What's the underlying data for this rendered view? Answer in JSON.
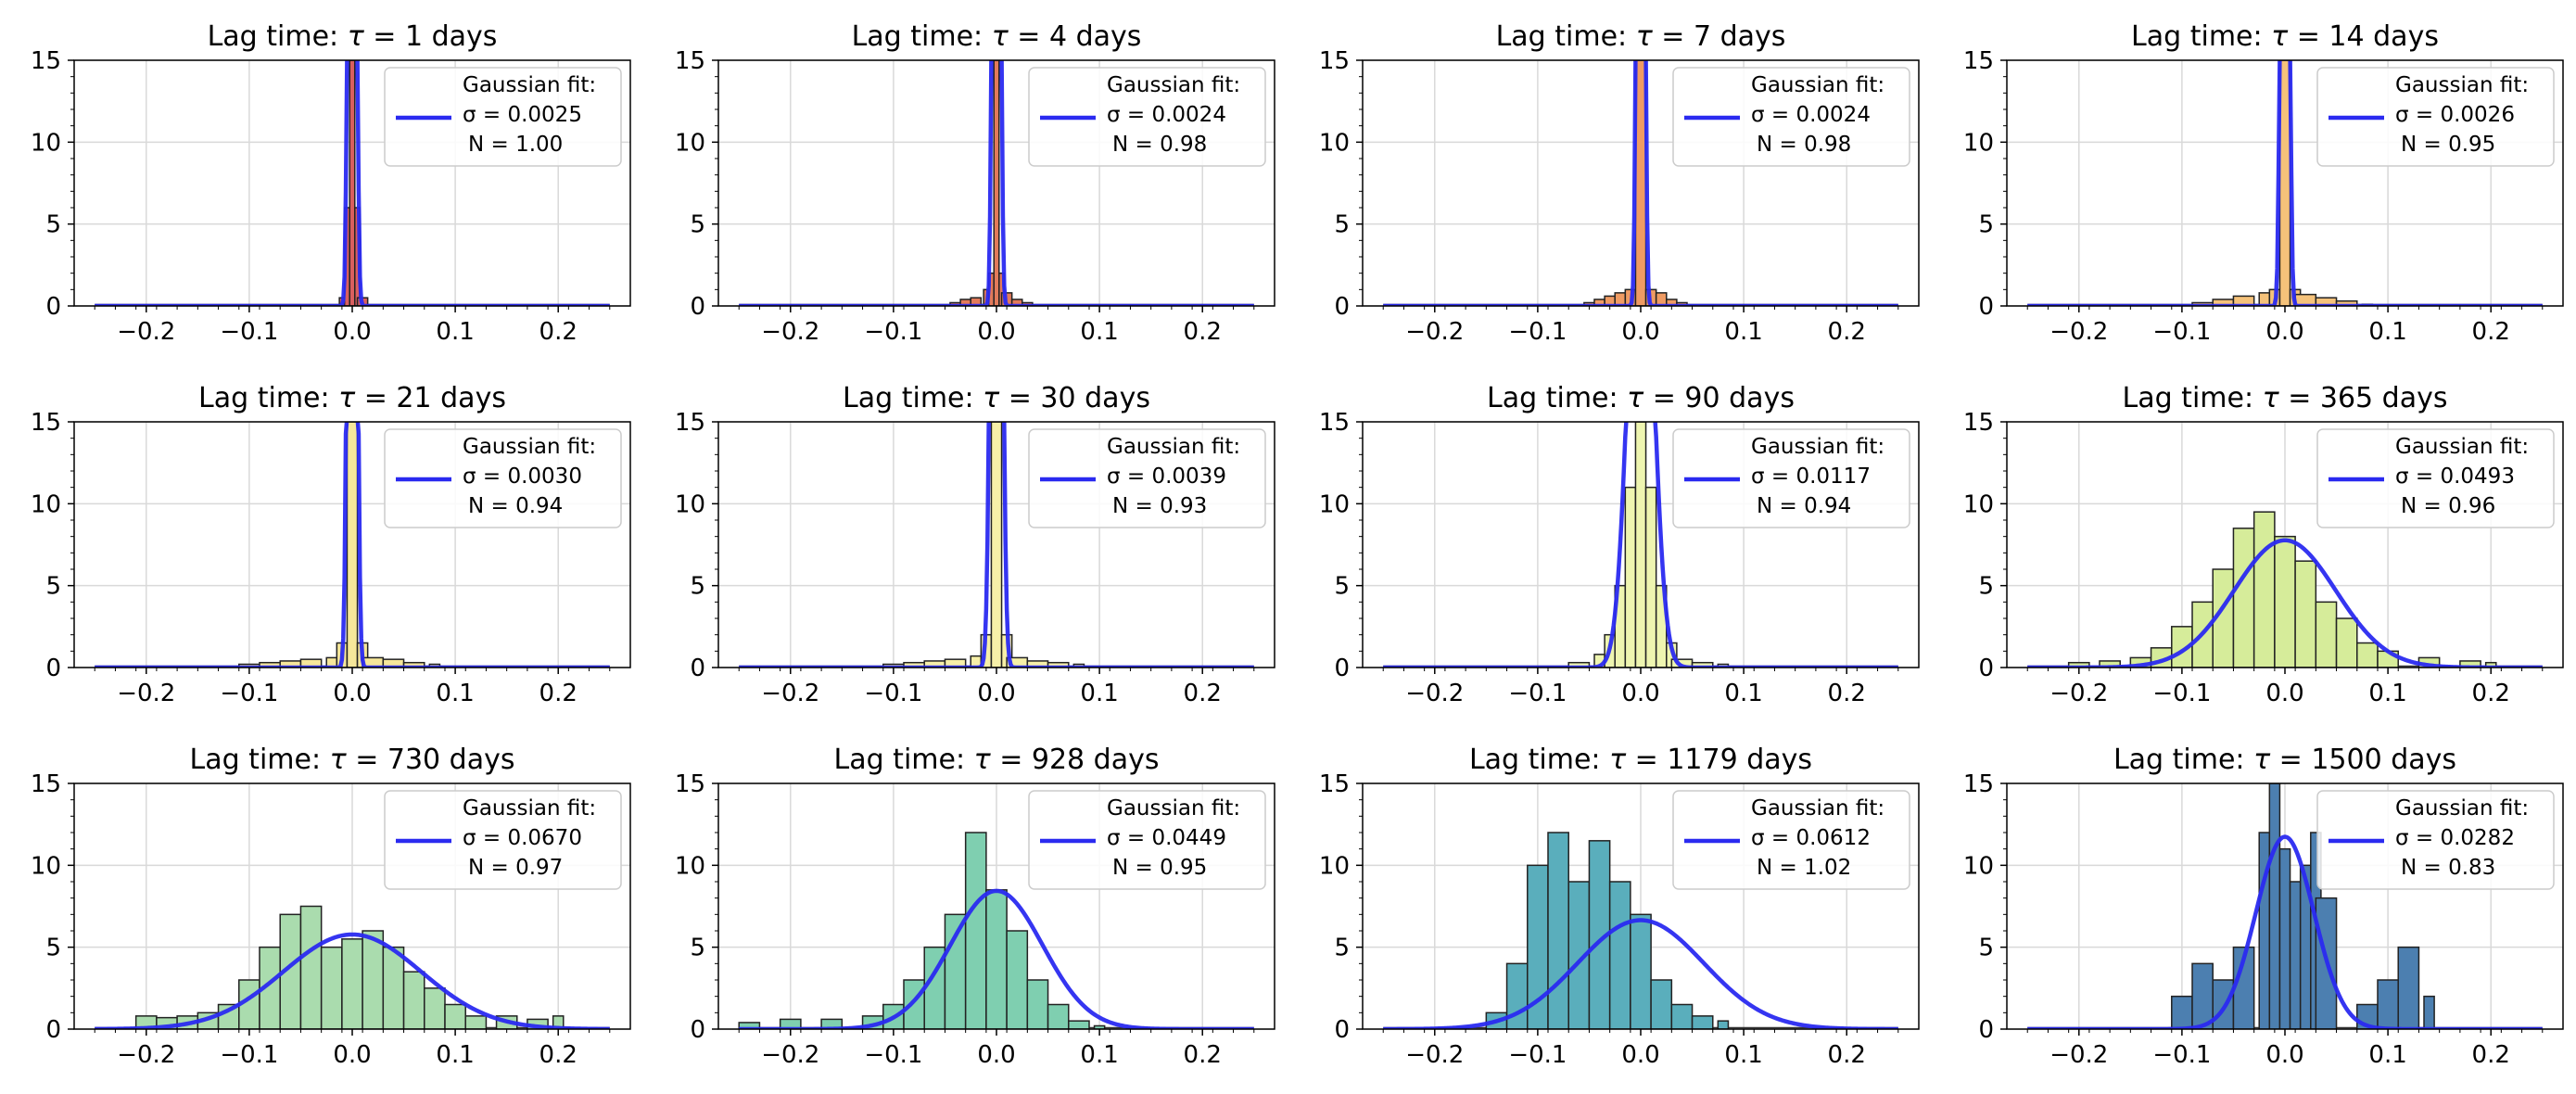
{
  "figure": {
    "title_prefix": "Lag time: ",
    "legend_heading": "Gaussian fit:"
  },
  "chart_data": [
    {
      "type": "bar",
      "title": "Lag time: τ = 1 days",
      "tau": "τ = 1",
      "days": "days",
      "xlim": [
        -0.27,
        0.27
      ],
      "ylim": [
        0,
        15
      ],
      "x_ticks": [
        -0.2,
        -0.1,
        0.0,
        0.1,
        0.2
      ],
      "x_tick_labels": [
        "−0.2",
        "−0.1",
        "0.0",
        "0.1",
        "0.2"
      ],
      "y_ticks": [
        0,
        5,
        10,
        15
      ],
      "grid": true,
      "legend_placement": "top-right",
      "hist_color": "#d95f5f",
      "fit": {
        "sigma": 0.0025,
        "N": 1.0,
        "sigma_label": "σ = 0.0025",
        "N_label": "N = 1.00"
      },
      "bins": [
        [
          -0.01,
          0.5
        ],
        [
          -0.005,
          6
        ],
        [
          0.0,
          15
        ],
        [
          0.005,
          6
        ],
        [
          0.01,
          0.5
        ]
      ]
    },
    {
      "type": "bar",
      "title": "Lag time: τ = 4 days",
      "tau": "τ = 4",
      "days": "days",
      "xlim": [
        -0.27,
        0.27
      ],
      "ylim": [
        0,
        15
      ],
      "x_ticks": [
        -0.2,
        -0.1,
        0.0,
        0.1,
        0.2
      ],
      "x_tick_labels": [
        "−0.2",
        "−0.1",
        "0.0",
        "0.1",
        "0.2"
      ],
      "y_ticks": [
        0,
        5,
        10,
        15
      ],
      "grid": true,
      "legend_placement": "top-right",
      "hist_color": "#e27a5a",
      "fit": {
        "sigma": 0.0024,
        "N": 0.98,
        "sigma_label": "σ = 0.0024",
        "N_label": "N = 0.98"
      },
      "bins": [
        [
          -0.04,
          0.2
        ],
        [
          -0.03,
          0.4
        ],
        [
          -0.02,
          0.5
        ],
        [
          -0.01,
          1.0
        ],
        [
          -0.005,
          2.0
        ],
        [
          0.0,
          15
        ],
        [
          0.005,
          2.0
        ],
        [
          0.01,
          0.8
        ],
        [
          0.02,
          0.4
        ],
        [
          0.03,
          0.2
        ]
      ]
    },
    {
      "type": "bar",
      "title": "Lag time: τ = 7 days",
      "tau": "τ = 7",
      "days": "days",
      "xlim": [
        -0.27,
        0.27
      ],
      "ylim": [
        0,
        15
      ],
      "x_ticks": [
        -0.2,
        -0.1,
        0.0,
        0.1,
        0.2
      ],
      "x_tick_labels": [
        "−0.2",
        "−0.1",
        "0.0",
        "0.1",
        "0.2"
      ],
      "y_ticks": [
        0,
        5,
        10,
        15
      ],
      "grid": true,
      "legend_placement": "top-right",
      "hist_color": "#ef9b63",
      "fit": {
        "sigma": 0.0024,
        "N": 0.98,
        "sigma_label": "σ = 0.0024",
        "N_label": "N = 0.98"
      },
      "bins": [
        [
          -0.05,
          0.2
        ],
        [
          -0.04,
          0.4
        ],
        [
          -0.03,
          0.6
        ],
        [
          -0.02,
          0.8
        ],
        [
          -0.01,
          1.0
        ],
        [
          0.0,
          15
        ],
        [
          0.01,
          1.0
        ],
        [
          0.02,
          0.8
        ],
        [
          0.03,
          0.4
        ],
        [
          0.04,
          0.2
        ]
      ]
    },
    {
      "type": "bar",
      "title": "Lag time: τ = 14 days",
      "tau": "τ = 14",
      "days": "days",
      "xlim": [
        -0.27,
        0.27
      ],
      "ylim": [
        0,
        15
      ],
      "x_ticks": [
        -0.2,
        -0.1,
        0.0,
        0.1,
        0.2
      ],
      "x_tick_labels": [
        "−0.2",
        "−0.1",
        "0.0",
        "0.1",
        "0.2"
      ],
      "y_ticks": [
        0,
        5,
        10,
        15
      ],
      "grid": true,
      "legend_placement": "top-right",
      "hist_color": "#f5c27a",
      "fit": {
        "sigma": 0.0026,
        "N": 0.95,
        "sigma_label": "σ = 0.0026",
        "N_label": "N = 0.95"
      },
      "bins": [
        [
          -0.08,
          0.2
        ],
        [
          -0.06,
          0.4
        ],
        [
          -0.04,
          0.6
        ],
        [
          -0.02,
          0.8
        ],
        [
          -0.01,
          1.0
        ],
        [
          0.0,
          15
        ],
        [
          0.01,
          1.0
        ],
        [
          0.02,
          0.7
        ],
        [
          0.04,
          0.5
        ],
        [
          0.06,
          0.3
        ],
        [
          0.08,
          0.1
        ]
      ]
    },
    {
      "type": "bar",
      "title": "Lag time: τ = 21 days",
      "tau": "τ = 21",
      "days": "days",
      "xlim": [
        -0.27,
        0.27
      ],
      "ylim": [
        0,
        15
      ],
      "x_ticks": [
        -0.2,
        -0.1,
        0.0,
        0.1,
        0.2
      ],
      "x_tick_labels": [
        "−0.2",
        "−0.1",
        "0.0",
        "0.1",
        "0.2"
      ],
      "y_ticks": [
        0,
        5,
        10,
        15
      ],
      "grid": true,
      "legend_placement": "top-right",
      "hist_color": "#f6e79a",
      "fit": {
        "sigma": 0.003,
        "N": 0.94,
        "sigma_label": "σ = 0.0030",
        "N_label": "N = 0.94"
      },
      "bins": [
        [
          -0.1,
          0.2
        ],
        [
          -0.08,
          0.3
        ],
        [
          -0.06,
          0.4
        ],
        [
          -0.04,
          0.5
        ],
        [
          -0.02,
          0.6
        ],
        [
          -0.01,
          1.5
        ],
        [
          0.0,
          15
        ],
        [
          0.01,
          1.5
        ],
        [
          0.02,
          0.6
        ],
        [
          0.04,
          0.5
        ],
        [
          0.06,
          0.3
        ],
        [
          0.08,
          0.2
        ]
      ]
    },
    {
      "type": "bar",
      "title": "Lag time: τ = 30 days",
      "tau": "τ = 30",
      "days": "days",
      "xlim": [
        -0.27,
        0.27
      ],
      "ylim": [
        0,
        15
      ],
      "x_ticks": [
        -0.2,
        -0.1,
        0.0,
        0.1,
        0.2
      ],
      "x_tick_labels": [
        "−0.2",
        "−0.1",
        "0.0",
        "0.1",
        "0.2"
      ],
      "y_ticks": [
        0,
        5,
        10,
        15
      ],
      "grid": true,
      "legend_placement": "top-right",
      "hist_color": "#f7f0a8",
      "fit": {
        "sigma": 0.0039,
        "N": 0.93,
        "sigma_label": "σ = 0.0039",
        "N_label": "N = 0.93"
      },
      "bins": [
        [
          -0.1,
          0.2
        ],
        [
          -0.08,
          0.3
        ],
        [
          -0.06,
          0.4
        ],
        [
          -0.04,
          0.5
        ],
        [
          -0.02,
          0.7
        ],
        [
          -0.01,
          2.0
        ],
        [
          0.0,
          15
        ],
        [
          0.01,
          2.0
        ],
        [
          0.02,
          0.6
        ],
        [
          0.04,
          0.4
        ],
        [
          0.06,
          0.3
        ],
        [
          0.08,
          0.2
        ]
      ]
    },
    {
      "type": "bar",
      "title": "Lag time: τ = 90 days",
      "tau": "τ = 90",
      "days": "days",
      "xlim": [
        -0.27,
        0.27
      ],
      "ylim": [
        0,
        15
      ],
      "x_ticks": [
        -0.2,
        -0.1,
        0.0,
        0.1,
        0.2
      ],
      "x_tick_labels": [
        "−0.2",
        "−0.1",
        "0.0",
        "0.1",
        "0.2"
      ],
      "y_ticks": [
        0,
        5,
        10,
        15
      ],
      "grid": true,
      "legend_placement": "top-right",
      "hist_color": "#eef5b0",
      "fit": {
        "sigma": 0.0117,
        "N": 0.94,
        "sigma_label": "σ = 0.0117",
        "N_label": "N = 0.94"
      },
      "bins": [
        [
          -0.06,
          0.3
        ],
        [
          -0.04,
          0.8
        ],
        [
          -0.03,
          2
        ],
        [
          -0.02,
          5
        ],
        [
          -0.01,
          11
        ],
        [
          0.0,
          15
        ],
        [
          0.01,
          11
        ],
        [
          0.02,
          5
        ],
        [
          0.03,
          1.5
        ],
        [
          0.04,
          0.5
        ],
        [
          0.06,
          0.3
        ],
        [
          0.08,
          0.2
        ]
      ]
    },
    {
      "type": "bar",
      "title": "Lag time: τ = 365 days",
      "tau": "τ = 365",
      "days": "days",
      "xlim": [
        -0.27,
        0.27
      ],
      "ylim": [
        0,
        15
      ],
      "x_ticks": [
        -0.2,
        -0.1,
        0.0,
        0.1,
        0.2
      ],
      "x_tick_labels": [
        "−0.2",
        "−0.1",
        "0.0",
        "0.1",
        "0.2"
      ],
      "y_ticks": [
        0,
        5,
        10,
        15
      ],
      "grid": true,
      "legend_placement": "top-right",
      "hist_color": "#d6ec9a",
      "fit": {
        "sigma": 0.0493,
        "N": 0.96,
        "sigma_label": "σ = 0.0493",
        "N_label": "N = 0.96"
      },
      "bins": [
        [
          -0.2,
          0.3
        ],
        [
          -0.17,
          0.4
        ],
        [
          -0.14,
          0.6
        ],
        [
          -0.12,
          1.2
        ],
        [
          -0.1,
          2.5
        ],
        [
          -0.08,
          4
        ],
        [
          -0.06,
          6
        ],
        [
          -0.04,
          8.5
        ],
        [
          -0.02,
          9.5
        ],
        [
          0.0,
          8
        ],
        [
          0.02,
          6.5
        ],
        [
          0.04,
          4
        ],
        [
          0.06,
          3
        ],
        [
          0.08,
          1.5
        ],
        [
          0.1,
          1
        ],
        [
          0.14,
          0.6
        ],
        [
          0.18,
          0.4
        ],
        [
          0.2,
          0.3
        ]
      ]
    },
    {
      "type": "bar",
      "title": "Lag time: τ = 730 days",
      "tau": "τ = 730",
      "days": "days",
      "xlim": [
        -0.27,
        0.27
      ],
      "ylim": [
        0,
        15
      ],
      "x_ticks": [
        -0.2,
        -0.1,
        0.0,
        0.1,
        0.2
      ],
      "x_tick_labels": [
        "−0.2",
        "−0.1",
        "0.0",
        "0.1",
        "0.2"
      ],
      "y_ticks": [
        0,
        5,
        10,
        15
      ],
      "grid": true,
      "legend_placement": "top-right",
      "hist_color": "#aadcae",
      "fit": {
        "sigma": 0.067,
        "N": 0.97,
        "sigma_label": "σ = 0.0670",
        "N_label": "N = 0.97"
      },
      "bins": [
        [
          -0.2,
          0.8
        ],
        [
          -0.18,
          0.7
        ],
        [
          -0.16,
          0.8
        ],
        [
          -0.14,
          1.0
        ],
        [
          -0.12,
          1.5
        ],
        [
          -0.1,
          3
        ],
        [
          -0.08,
          5
        ],
        [
          -0.06,
          7
        ],
        [
          -0.04,
          7.5
        ],
        [
          -0.02,
          5
        ],
        [
          0.0,
          5.5
        ],
        [
          0.02,
          6
        ],
        [
          0.04,
          5
        ],
        [
          0.06,
          3.5
        ],
        [
          0.08,
          2.5
        ],
        [
          0.1,
          1.5
        ],
        [
          0.12,
          0.8
        ],
        [
          0.15,
          0.8
        ],
        [
          0.18,
          0.6
        ],
        [
          0.2,
          0.8
        ]
      ]
    },
    {
      "type": "bar",
      "title": "Lag time: τ = 928 days",
      "tau": "τ = 928",
      "days": "days",
      "xlim": [
        -0.27,
        0.27
      ],
      "ylim": [
        0,
        15
      ],
      "x_ticks": [
        -0.2,
        -0.1,
        0.0,
        0.1,
        0.2
      ],
      "x_tick_labels": [
        "−0.2",
        "−0.1",
        "0.0",
        "0.1",
        "0.2"
      ],
      "y_ticks": [
        0,
        5,
        10,
        15
      ],
      "grid": true,
      "legend_placement": "top-right",
      "hist_color": "#7fcfb0",
      "fit": {
        "sigma": 0.0449,
        "N": 0.95,
        "sigma_label": "σ = 0.0449",
        "N_label": "N = 0.95"
      },
      "bins": [
        [
          -0.24,
          0.4
        ],
        [
          -0.2,
          0.6
        ],
        [
          -0.16,
          0.6
        ],
        [
          -0.12,
          0.8
        ],
        [
          -0.1,
          1.5
        ],
        [
          -0.08,
          3
        ],
        [
          -0.06,
          5
        ],
        [
          -0.04,
          7
        ],
        [
          -0.02,
          12
        ],
        [
          0.0,
          8.5
        ],
        [
          0.02,
          6
        ],
        [
          0.04,
          3
        ],
        [
          0.06,
          1.5
        ],
        [
          0.08,
          0.5
        ],
        [
          0.1,
          0.2
        ]
      ]
    },
    {
      "type": "bar",
      "title": "Lag time: τ = 1179 days",
      "tau": "τ = 1179",
      "days": "days",
      "xlim": [
        -0.27,
        0.27
      ],
      "ylim": [
        0,
        15
      ],
      "x_ticks": [
        -0.2,
        -0.1,
        0.0,
        0.1,
        0.2
      ],
      "x_tick_labels": [
        "−0.2",
        "−0.1",
        "0.0",
        "0.1",
        "0.2"
      ],
      "y_ticks": [
        0,
        5,
        10,
        15
      ],
      "grid": true,
      "legend_placement": "top-right",
      "hist_color": "#5aaebc",
      "fit": {
        "sigma": 0.0612,
        "N": 1.02,
        "sigma_label": "σ = 0.0612",
        "N_label": "N = 1.02"
      },
      "bins": [
        [
          -0.14,
          1
        ],
        [
          -0.12,
          4
        ],
        [
          -0.1,
          10
        ],
        [
          -0.08,
          12
        ],
        [
          -0.06,
          9
        ],
        [
          -0.04,
          11.5
        ],
        [
          -0.02,
          9
        ],
        [
          0.0,
          7
        ],
        [
          0.02,
          3
        ],
        [
          0.04,
          1.5
        ],
        [
          0.06,
          0.8
        ],
        [
          0.08,
          0.5
        ]
      ]
    },
    {
      "type": "bar",
      "title": "Lag time: τ = 1500 days",
      "tau": "τ = 1500",
      "days": "days",
      "xlim": [
        -0.27,
        0.27
      ],
      "ylim": [
        0,
        15
      ],
      "x_ticks": [
        -0.2,
        -0.1,
        0.0,
        0.1,
        0.2
      ],
      "x_tick_labels": [
        "−0.2",
        "−0.1",
        "0.0",
        "0.1",
        "0.2"
      ],
      "y_ticks": [
        0,
        5,
        10,
        15
      ],
      "grid": true,
      "legend_placement": "top-right",
      "hist_color": "#4c7fb0",
      "fit": {
        "sigma": 0.0282,
        "N": 0.83,
        "sigma_label": "σ = 0.0282",
        "N_label": "N = 0.83"
      },
      "bins": [
        [
          -0.1,
          2
        ],
        [
          -0.08,
          4
        ],
        [
          -0.06,
          3
        ],
        [
          -0.04,
          5
        ],
        [
          -0.02,
          12
        ],
        [
          -0.01,
          15
        ],
        [
          0.0,
          11
        ],
        [
          0.01,
          9
        ],
        [
          0.02,
          10
        ],
        [
          0.03,
          12
        ],
        [
          0.04,
          8
        ],
        [
          0.08,
          1.5
        ],
        [
          0.1,
          3
        ],
        [
          0.12,
          5
        ],
        [
          0.14,
          2
        ]
      ]
    }
  ]
}
